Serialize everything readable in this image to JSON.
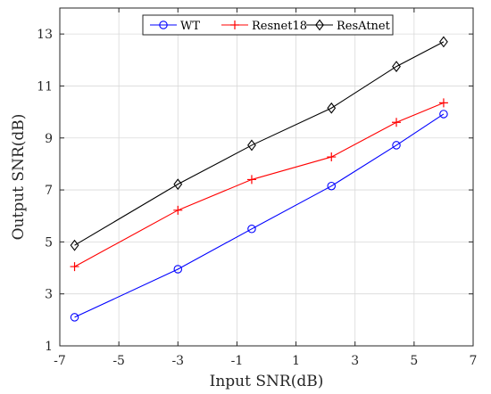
{
  "chart_data": {
    "type": "line",
    "xlabel": "Input SNR(dB)",
    "ylabel": "Output SNR(dB)",
    "xlim": [
      -7,
      7
    ],
    "ylim": [
      1,
      14
    ],
    "xticks": [
      -7,
      -5,
      -3,
      -1,
      1,
      3,
      5,
      7
    ],
    "yticks": [
      1,
      3,
      5,
      7,
      9,
      11,
      13
    ],
    "xtick_labels": [
      "-7",
      "-5",
      "-3",
      "-1",
      "1",
      "3",
      "5",
      "7"
    ],
    "ytick_labels": [
      "1",
      "3",
      "5",
      "7",
      "9",
      "11",
      "13"
    ],
    "grid": true,
    "legend_position": "top",
    "legend_orientation": "horizontal",
    "x": [
      -6.5,
      -3.0,
      -0.5,
      2.2,
      4.4,
      6.0
    ],
    "series": [
      {
        "name": "WT",
        "color": "#0000ff",
        "marker": "circle",
        "values": [
          2.1,
          3.95,
          5.5,
          7.15,
          8.72,
          9.92
        ]
      },
      {
        "name": "Resnet18",
        "color": "#ff0000",
        "marker": "plus",
        "values": [
          4.05,
          6.22,
          7.4,
          8.27,
          9.6,
          10.35
        ]
      },
      {
        "name": "ResAtnet",
        "color": "#000000",
        "marker": "diamond",
        "values": [
          4.87,
          7.22,
          8.72,
          10.15,
          11.75,
          12.7
        ]
      }
    ]
  }
}
